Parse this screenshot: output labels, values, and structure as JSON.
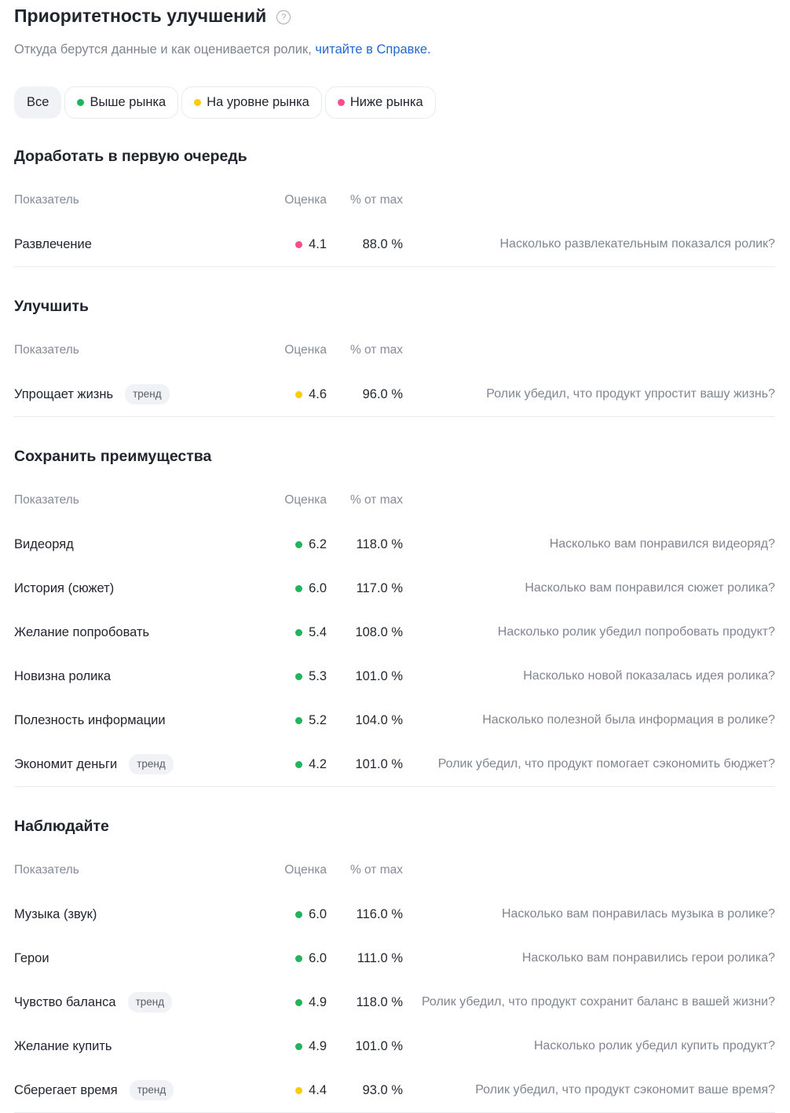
{
  "header": {
    "title": "Приоритетность улучшений",
    "help_icon": "?",
    "subtitle_text": "Откуда берутся данные и как оценивается ролик, ",
    "subtitle_link": "читайте в Справке."
  },
  "filters": [
    {
      "label": "Все",
      "active": true,
      "dot": null
    },
    {
      "label": "Выше рынка",
      "active": false,
      "dot": "green"
    },
    {
      "label": "На уровне рынка",
      "active": false,
      "dot": "yellow"
    },
    {
      "label": "Ниже рынка",
      "active": false,
      "dot": "pink"
    }
  ],
  "columns": {
    "indicator": "Показатель",
    "score": "Оценка",
    "percent": "% от max"
  },
  "badge_label": "тренд",
  "colors": {
    "green": "#20b55c",
    "yellow": "#fdcb0a",
    "pink": "#fb4d8c"
  },
  "sections": [
    {
      "title": "Доработать в первую очередь",
      "rows": [
        {
          "label": "Развлечение",
          "badge": false,
          "dot": "pink",
          "score": "4.1",
          "percent": "88.0 %",
          "description": "Насколько развлекательным показался ролик?"
        }
      ]
    },
    {
      "title": "Улучшить",
      "rows": [
        {
          "label": "Упрощает жизнь",
          "badge": true,
          "dot": "yellow",
          "score": "4.6",
          "percent": "96.0 %",
          "description": "Ролик убедил, что продукт упростит вашу жизнь?"
        }
      ]
    },
    {
      "title": "Сохранить преимущества",
      "rows": [
        {
          "label": "Видеоряд",
          "badge": false,
          "dot": "green",
          "score": "6.2",
          "percent": "118.0 %",
          "description": "Насколько вам понравился видеоряд?"
        },
        {
          "label": "История (сюжет)",
          "badge": false,
          "dot": "green",
          "score": "6.0",
          "percent": "117.0 %",
          "description": "Насколько вам понравился сюжет ролика?"
        },
        {
          "label": "Желание попробовать",
          "badge": false,
          "dot": "green",
          "score": "5.4",
          "percent": "108.0 %",
          "description": "Насколько ролик убедил попробовать продукт?"
        },
        {
          "label": "Новизна ролика",
          "badge": false,
          "dot": "green",
          "score": "5.3",
          "percent": "101.0 %",
          "description": "Насколько новой показалась идея ролика?"
        },
        {
          "label": "Полезность информации",
          "badge": false,
          "dot": "green",
          "score": "5.2",
          "percent": "104.0 %",
          "description": "Насколько полезной была информация в ролике?"
        },
        {
          "label": "Экономит деньги",
          "badge": true,
          "dot": "green",
          "score": "4.2",
          "percent": "101.0 %",
          "description": "Ролик убедил, что продукт помогает сэкономить бюджет?"
        }
      ]
    },
    {
      "title": "Наблюдайте",
      "rows": [
        {
          "label": "Музыка (звук)",
          "badge": false,
          "dot": "green",
          "score": "6.0",
          "percent": "116.0 %",
          "description": "Насколько вам понравилась музыка в ролике?"
        },
        {
          "label": "Герои",
          "badge": false,
          "dot": "green",
          "score": "6.0",
          "percent": "111.0 %",
          "description": "Насколько вам понравились герои ролика?"
        },
        {
          "label": "Чувство баланса",
          "badge": true,
          "dot": "green",
          "score": "4.9",
          "percent": "118.0 %",
          "description": "Ролик убедил, что продукт сохранит баланс в вашей жизни?"
        },
        {
          "label": "Желание купить",
          "badge": false,
          "dot": "green",
          "score": "4.9",
          "percent": "101.0 %",
          "description": "Насколько ролик убедил купить продукт?"
        },
        {
          "label": "Сберегает время",
          "badge": true,
          "dot": "yellow",
          "score": "4.4",
          "percent": "93.0 %",
          "description": "Ролик убедил, что продукт сэкономит ваше время?"
        }
      ]
    }
  ]
}
